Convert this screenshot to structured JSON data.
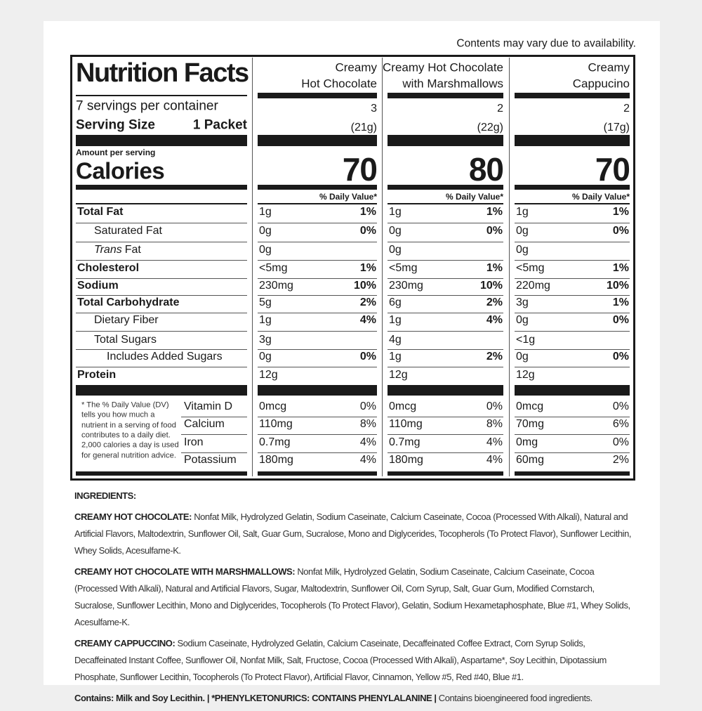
{
  "note": "Contents may vary due to availability.",
  "label": {
    "title": "Nutrition Facts",
    "servings_per_container": "7 servings per container",
    "serving_size_label": "Serving Size",
    "serving_size": "1 Packet",
    "amount_per_serving": "Amount per serving",
    "calories_label": "Calories",
    "daily_value_header": "% Daily Value*",
    "nutrients": [
      {
        "name": "Total Fat"
      },
      {
        "name": "Saturated Fat"
      },
      {
        "italic": "Trans",
        "name": "Fat"
      },
      {
        "name": "Cholesterol"
      },
      {
        "name": "Sodium"
      },
      {
        "name": "Total Carbohydrate"
      },
      {
        "name": "Dietary Fiber"
      },
      {
        "name": "Total Sugars"
      },
      {
        "name": "Includes Added Sugars"
      },
      {
        "name": "Protein"
      }
    ],
    "footnote": [
      "* The % Daily Value (DV)",
      "tells you how much a",
      "nutrient in a serving of food",
      "contributes to a daily diet.",
      "2,000 calories a day is used",
      "for general nutrition advice."
    ],
    "vitamins": [
      "Vitamin D",
      "Calcium",
      "Iron",
      "Potassium"
    ],
    "products": [
      {
        "name": [
          "Creamy",
          "Hot Chocolate"
        ],
        "servings": 3,
        "weight": "(21g)",
        "calories": 70,
        "nutrients": [
          [
            "1g",
            "1%"
          ],
          [
            "0g",
            "0%"
          ],
          [
            "0g",
            null
          ],
          [
            "<5mg",
            "1%"
          ],
          [
            "230mg",
            "10%"
          ],
          [
            "5g",
            "2%"
          ],
          [
            "1g",
            "4%"
          ],
          [
            "3g",
            null
          ],
          [
            "0g",
            "0%"
          ],
          [
            "12g",
            null
          ]
        ],
        "vitamins": [
          [
            "0mcg",
            "0%"
          ],
          [
            "110mg",
            "8%"
          ],
          [
            "0.7mg",
            "4%"
          ],
          [
            "180mg",
            "4%"
          ]
        ]
      },
      {
        "name": [
          "Creamy Hot Chocolate",
          "with Marshmallows"
        ],
        "servings": 2,
        "weight": "(22g)",
        "calories": 80,
        "nutrients": [
          [
            "1g",
            "1%"
          ],
          [
            "0g",
            "0%"
          ],
          [
            "0g",
            null
          ],
          [
            "<5mg",
            "1%"
          ],
          [
            "230mg",
            "10%"
          ],
          [
            "6g",
            "2%"
          ],
          [
            "1g",
            "4%"
          ],
          [
            "4g",
            null
          ],
          [
            "1g",
            "2%"
          ],
          [
            "12g",
            null
          ]
        ],
        "vitamins": [
          [
            "0mcg",
            "0%"
          ],
          [
            "110mg",
            "8%"
          ],
          [
            "0.7mg",
            "4%"
          ],
          [
            "180mg",
            "4%"
          ]
        ]
      },
      {
        "name": [
          "Creamy",
          "Cappucino"
        ],
        "servings": 2,
        "weight": "(17g)",
        "calories": 70,
        "nutrients": [
          [
            "1g",
            "1%"
          ],
          [
            "0g",
            "0%"
          ],
          [
            "0g",
            null
          ],
          [
            "<5mg",
            "1%"
          ],
          [
            "220mg",
            "10%"
          ],
          [
            "3g",
            "1%"
          ],
          [
            "0g",
            "0%"
          ],
          [
            "<1g",
            null
          ],
          [
            "0g",
            "0%"
          ],
          [
            "12g",
            null
          ]
        ],
        "vitamins": [
          [
            "0mcg",
            "0%"
          ],
          [
            "70mg",
            "6%"
          ],
          [
            "0mg",
            "0%"
          ],
          [
            "60mg",
            "2%"
          ]
        ]
      }
    ]
  },
  "ingredients": {
    "heading": "INGREDIENTS:",
    "items": [
      {
        "name": "CREAMY HOT CHOCOLATE:",
        "text": "Nonfat Milk, Hydrolyzed Gelatin, Sodium Caseinate, Calcium Caseinate, Cocoa (Processed With Alkali), Natural and Artificial Flavors, Maltodextrin, Sunflower Oil, Salt, Guar Gum, Sucralose, Mono and Diglycerides, Tocopherols (To Protect Flavor), Sunflower Lecithin, Whey Solids, Acesulfame-K."
      },
      {
        "name": "CREAMY HOT CHOCOLATE WITH MARSHMALLOWS:",
        "text": "Nonfat Milk, Hydrolyzed Gelatin, Sodium Caseinate, Calcium Caseinate, Cocoa (Processed With Alkali), Natural and Artificial Flavors, Sugar, Maltodextrin, Sunflower Oil, Corn Syrup, Salt, Guar Gum, Modified Cornstarch, Sucralose, Sunflower Lecithin, Mono and Diglycerides, Tocopherols (To Protect Flavor), Gelatin, Sodium Hexametaphosphate, Blue #1, Whey Solids, Acesulfame-K."
      },
      {
        "name": "CREAMY CAPPUCCINO:",
        "text": "Sodium Caseinate, Hydrolyzed Gelatin, Calcium Caseinate, Decaffeinated Coffee Extract, Corn Syrup Solids, Decaffeinated Instant Coffee, Sunflower Oil, Nonfat Milk, Salt, Fructose, Cocoa (Processed With Alkali), Aspartame*, Soy Lecithin, Dipotassium Phosphate, Sunflower Lecithin, Tocopherols (To Protect Flavor), Artificial Flavor, Cinnamon, Yellow #5, Red #40, Blue #1."
      }
    ],
    "contains": [
      "Contains: Milk and Soy Lecithin.",
      "*PHENYLKETONURICS: CONTAINS PHENYLALANINE",
      "Contains bioengineered food ingredients."
    ],
    "separator": "|"
  }
}
